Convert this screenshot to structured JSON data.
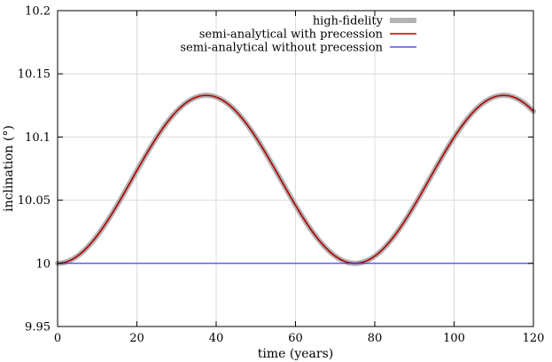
{
  "chart_data": {
    "type": "line",
    "title": "",
    "xlabel": "time (years)",
    "ylabel": "inclination (°)",
    "xlim": [
      0,
      120
    ],
    "ylim": [
      9.95,
      10.2
    ],
    "xticks": [
      0,
      20,
      40,
      60,
      80,
      100,
      120
    ],
    "xtick_labels": [
      "0",
      "20",
      "40",
      "60",
      "80",
      "100",
      "120"
    ],
    "yticks": [
      9.95,
      10,
      10.05,
      10.1,
      10.15,
      10.2
    ],
    "ytick_labels": [
      "9.95",
      "10",
      "10.05",
      "10.1",
      "10.15",
      "10.2"
    ],
    "grid": true,
    "legend_position": "top-right",
    "series": [
      {
        "name": "high-fidelity",
        "color": "#b3b3b3",
        "x": [
          0,
          5,
          10,
          15,
          20,
          25,
          30,
          35,
          37.5,
          40,
          45,
          50,
          55,
          60,
          65,
          70,
          75,
          80,
          85,
          90,
          95,
          100,
          105,
          110,
          112.5,
          115,
          120
        ],
        "y": [
          10.0,
          10.0057,
          10.0218,
          10.045,
          10.0706,
          10.0937,
          10.1098,
          10.1155,
          10.133,
          10.1098,
          10.0937,
          10.0706,
          10.045,
          10.0218,
          10.0057,
          10.0005,
          10.0,
          10.0057,
          10.0218,
          10.045,
          10.0706,
          10.0937,
          10.1098,
          10.1318,
          10.133,
          10.13,
          10.1193
        ]
      },
      {
        "name": "semi-analytical with precession",
        "color": "#b00000",
        "x": [
          0,
          5,
          10,
          15,
          20,
          25,
          30,
          35,
          37.5,
          40,
          45,
          50,
          55,
          60,
          65,
          70,
          75,
          80,
          85,
          90,
          95,
          100,
          105,
          110,
          112.5,
          115,
          120
        ],
        "y": [
          10.0,
          10.0057,
          10.0218,
          10.045,
          10.0706,
          10.0937,
          10.1098,
          10.1155,
          10.133,
          10.1098,
          10.0937,
          10.0706,
          10.045,
          10.0218,
          10.0057,
          10.0005,
          10.0,
          10.0057,
          10.0218,
          10.045,
          10.0706,
          10.0937,
          10.1098,
          10.1318,
          10.133,
          10.13,
          10.1193
        ]
      },
      {
        "name": "semi-analytical without precession",
        "color": "#3030ff",
        "x": [
          0,
          120
        ],
        "y": [
          10.0,
          10.0
        ]
      }
    ]
  }
}
